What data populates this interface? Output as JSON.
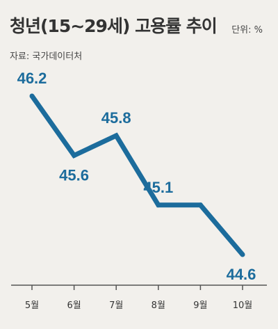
{
  "header": {
    "title": "청년(15~29세) 고용률 추이",
    "unit": "단위: %",
    "source": "자료: 국가데이터처"
  },
  "colors": {
    "background": "#f2f0ec",
    "line": "#1c6c9c",
    "axis": "#555555",
    "text": "#333333"
  },
  "chart_data": {
    "type": "line",
    "title": "청년(15~29세) 고용률 추이",
    "xlabel": "",
    "ylabel": "",
    "categories": [
      "5월",
      "6월",
      "7월",
      "8월",
      "9월",
      "10월"
    ],
    "series": [
      {
        "values": [
          46.2,
          45.6,
          45.8,
          45.1,
          45.1,
          44.6
        ]
      }
    ],
    "data_labels": [
      "46.2",
      "45.6",
      "45.8",
      "45.1",
      "",
      "44.6"
    ],
    "grid": false,
    "legend": "none"
  }
}
